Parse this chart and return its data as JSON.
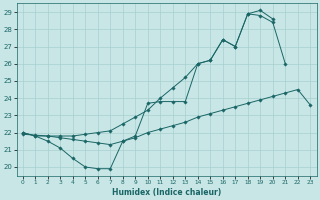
{
  "xlabel": "Humidex (Indice chaleur)",
  "bg_color": "#c8e6e6",
  "grid_color": "#a8d0d0",
  "line_color": "#1a6666",
  "xlim": [
    -0.5,
    23.5
  ],
  "ylim": [
    19.5,
    29.5
  ],
  "xticks": [
    0,
    1,
    2,
    3,
    4,
    5,
    6,
    7,
    8,
    9,
    10,
    11,
    12,
    13,
    14,
    15,
    16,
    17,
    18,
    19,
    20,
    21,
    22,
    23
  ],
  "yticks": [
    20,
    21,
    22,
    23,
    24,
    25,
    26,
    27,
    28,
    29
  ],
  "series1": [
    22.0,
    21.8,
    21.5,
    21.1,
    20.5,
    20.0,
    19.9,
    19.9,
    21.5,
    21.8,
    23.7,
    23.8,
    23.8,
    23.8,
    26.0,
    26.2,
    27.4,
    27.0,
    28.9,
    28.8,
    28.4,
    26.0,
    null,
    null
  ],
  "series2": [
    21.9,
    21.85,
    21.8,
    21.7,
    21.6,
    21.5,
    21.4,
    21.3,
    21.5,
    21.7,
    22.0,
    22.2,
    22.4,
    22.6,
    22.9,
    23.1,
    23.3,
    23.5,
    23.7,
    23.9,
    24.1,
    24.3,
    24.5,
    23.6
  ],
  "series3": [
    22.0,
    21.8,
    21.8,
    21.8,
    21.8,
    21.9,
    22.0,
    22.1,
    22.5,
    22.9,
    23.3,
    24.0,
    24.6,
    25.2,
    26.0,
    26.2,
    27.4,
    27.0,
    28.9,
    29.1,
    28.6,
    null,
    null,
    null
  ]
}
